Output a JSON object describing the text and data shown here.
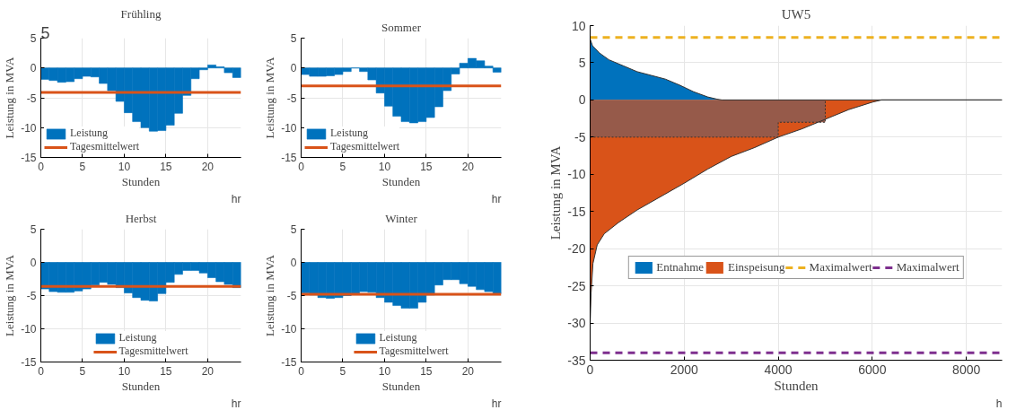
{
  "chart_data": [
    {
      "type": "bar",
      "title": "Frühling",
      "xlabel": "Stunden",
      "ylabel": "Leistung in MVA",
      "annotations": [
        "5",
        "hr"
      ],
      "x": [
        0.5,
        1.5,
        2.5,
        3.5,
        4.5,
        5.5,
        6.5,
        7.5,
        8.5,
        9.5,
        10.5,
        11.5,
        12.5,
        13.5,
        14.5,
        15.5,
        16.5,
        17.5,
        18.5,
        19.5,
        20.5,
        21.5,
        22.5,
        23.5
      ],
      "series": [
        {
          "name": "Leistung",
          "color": "#0072bd",
          "values": [
            -1.9,
            -2.1,
            -2.4,
            -2.3,
            -1.8,
            -1.4,
            -1.5,
            -2.6,
            -3.8,
            -5.6,
            -7.5,
            -9.0,
            -10.0,
            -10.6,
            -10.5,
            -9.6,
            -7.6,
            -4.6,
            -1.8,
            -0.3,
            0.5,
            0.2,
            -0.8,
            -1.6
          ]
        }
      ],
      "ref_lines": [
        {
          "axis": "y",
          "value": -4.1,
          "label": "Tagesmittelwert",
          "color": "#d95319"
        }
      ],
      "xlim": [
        0,
        24
      ],
      "ylim": [
        -15,
        5
      ],
      "xticks": [
        0,
        5,
        10,
        15,
        20
      ],
      "yticks": [
        -15,
        -10,
        -5,
        0,
        5
      ],
      "grid": true,
      "legend": "bottom left"
    },
    {
      "type": "bar",
      "title": "Sommer",
      "xlabel": "Stunden",
      "ylabel": "Leistung in MVA",
      "annotations": [
        "hr"
      ],
      "x": [
        0.5,
        1.5,
        2.5,
        3.5,
        4.5,
        5.5,
        6.5,
        7.5,
        8.5,
        9.5,
        10.5,
        11.5,
        12.5,
        13.5,
        14.5,
        15.5,
        16.5,
        17.5,
        18.5,
        19.5,
        20.5,
        21.5,
        22.5,
        23.5
      ],
      "series": [
        {
          "name": "Leistung",
          "color": "#0072bd",
          "values": [
            -1.1,
            -1.4,
            -1.4,
            -1.3,
            -1.1,
            -0.6,
            0,
            -0.6,
            -2.0,
            -4.2,
            -6.4,
            -8.1,
            -9.0,
            -9.2,
            -9.0,
            -8.3,
            -6.5,
            -3.8,
            -1.0,
            0.8,
            1.6,
            1.2,
            0.3,
            -0.7
          ]
        }
      ],
      "ref_lines": [
        {
          "axis": "y",
          "value": -3,
          "label": "Tagesmittelwert",
          "color": "#d95319"
        }
      ],
      "xlim": [
        0,
        24
      ],
      "ylim": [
        -15,
        5
      ],
      "xticks": [
        0,
        5,
        10,
        15,
        20
      ],
      "yticks": [
        -15,
        -10,
        -5,
        0,
        5
      ],
      "grid": true,
      "legend": "bottom left"
    },
    {
      "type": "bar",
      "title": "Herbst",
      "xlabel": "Stunden",
      "ylabel": "Leistung in MVA",
      "annotations": [
        "hr"
      ],
      "x": [
        0.5,
        1.5,
        2.5,
        3.5,
        4.5,
        5.5,
        6.5,
        7.5,
        8.5,
        9.5,
        10.5,
        11.5,
        12.5,
        13.5,
        14.5,
        15.5,
        16.5,
        17.5,
        18.5,
        19.5,
        20.5,
        21.5,
        22.5,
        23.5
      ],
      "series": [
        {
          "name": "Leistung",
          "color": "#0072bd",
          "values": [
            -4.0,
            -4.4,
            -4.5,
            -4.5,
            -4.3,
            -4.0,
            -3.4,
            -3.0,
            -3.3,
            -3.8,
            -4.6,
            -5.3,
            -5.7,
            -5.8,
            -4.7,
            -3.0,
            -1.8,
            -1.2,
            -1.2,
            -1.6,
            -2.3,
            -2.9,
            -3.3,
            -3.8
          ]
        }
      ],
      "ref_lines": [
        {
          "axis": "y",
          "value": -3.6,
          "label": "Tagesmittelwert",
          "color": "#d95319"
        }
      ],
      "xlim": [
        0,
        24
      ],
      "ylim": [
        -15,
        5
      ],
      "xticks": [
        0,
        5,
        10,
        15,
        20
      ],
      "yticks": [
        -15,
        -10,
        -5,
        0,
        5
      ],
      "grid": true,
      "legend": "bottom"
    },
    {
      "type": "bar",
      "title": "Winter",
      "xlabel": "Stunden",
      "ylabel": "Leistung in MVA",
      "annotations": [
        "hr"
      ],
      "x": [
        0.5,
        1.5,
        2.5,
        3.5,
        4.5,
        5.5,
        6.5,
        7.5,
        8.5,
        9.5,
        10.5,
        11.5,
        12.5,
        13.5,
        14.5,
        15.5,
        16.5,
        17.5,
        18.5,
        19.5,
        20.5,
        21.5,
        22.5,
        23.5
      ],
      "series": [
        {
          "name": "Leistung",
          "color": "#0072bd",
          "values": [
            -4.6,
            -4.9,
            -5.3,
            -5.4,
            -5.3,
            -5.0,
            -4.7,
            -4.4,
            -4.5,
            -5.3,
            -6.0,
            -6.5,
            -6.9,
            -6.9,
            -6.0,
            -4.9,
            -3.4,
            -2.6,
            -2.6,
            -3.2,
            -3.6,
            -4.1,
            -4.4,
            -4.7
          ]
        }
      ],
      "ref_lines": [
        {
          "axis": "y",
          "value": -4.8,
          "label": "Tagesmittelwert",
          "color": "#d95319"
        }
      ],
      "xlim": [
        0,
        24
      ],
      "ylim": [
        -15,
        5
      ],
      "xticks": [
        0,
        5,
        10,
        15,
        20
      ],
      "yticks": [
        -15,
        -10,
        -5,
        0,
        5
      ],
      "grid": true,
      "legend": "bottom"
    },
    {
      "type": "area",
      "title": "UW5",
      "xlabel": "Stunden",
      "ylabel": "Leistung in MVA",
      "annotations": [
        "h"
      ],
      "series": [
        {
          "name": "Entnahme",
          "color": "#0072bd",
          "x": [
            0,
            50,
            200,
            400,
            700,
            1000,
            1300,
            1600,
            1900,
            2200,
            2500,
            2700,
            2800,
            8760
          ],
          "values": [
            8.2,
            7.3,
            6.3,
            5.4,
            4.6,
            3.8,
            3.3,
            2.8,
            2.0,
            1.1,
            0.4,
            0.1,
            0,
            0
          ]
        },
        {
          "name": "Einspeisung",
          "color": "#d95319",
          "x": [
            0,
            20,
            60,
            150,
            300,
            600,
            1000,
            1500,
            2000,
            2500,
            3000,
            3500,
            4000,
            4500,
            5000,
            5500,
            6000,
            6200,
            8760
          ],
          "values": [
            -30,
            -26,
            -22,
            -19.5,
            -18,
            -16.5,
            -14.8,
            -13,
            -11.2,
            -9.3,
            -7.6,
            -6.4,
            -5.0,
            -3.9,
            -2.6,
            -1.3,
            -0.3,
            0,
            0
          ]
        },
        {
          "color": "#965a4a",
          "line_style": "dotted",
          "x": [
            0,
            4000,
            4000,
            5000
          ],
          "values": [
            -5,
            -5,
            -3,
            -3
          ]
        }
      ],
      "ref_lines": [
        {
          "axis": "y",
          "value": 8.4,
          "label": "Maximalwert",
          "color": "#edb120",
          "line_style": "dashed"
        },
        {
          "axis": "y",
          "value": -34,
          "label": "Maximalwert",
          "color": "#7e2f8e",
          "line_style": "dashed"
        }
      ],
      "xlim": [
        0,
        8760
      ],
      "ylim": [
        -35,
        10
      ],
      "xticks": [
        0,
        2000,
        4000,
        6000,
        8000
      ],
      "yticks": [
        -35,
        -30,
        -25,
        -20,
        -15,
        -10,
        -5,
        0,
        5,
        10
      ],
      "grid": true,
      "legend": "bottom"
    }
  ]
}
